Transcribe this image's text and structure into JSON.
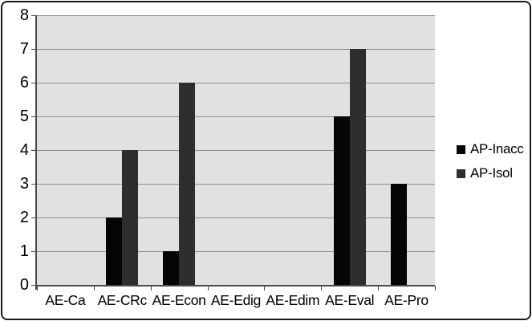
{
  "chart_data": {
    "type": "bar",
    "title": "",
    "categories": [
      "AE-Ca",
      "AE-CRc",
      "AE-Econ",
      "AE-Edig",
      "AE-Edim",
      "AE-Eval",
      "AE-Pro"
    ],
    "series": [
      {
        "name": "AP-Inacc",
        "color": "#050505",
        "values": [
          0,
          2,
          1,
          0,
          0,
          5,
          3
        ]
      },
      {
        "name": "AP-Isol",
        "color": "#2e2e2e",
        "values": [
          0,
          4,
          6,
          0,
          0,
          7,
          0
        ]
      }
    ],
    "xlabel": "",
    "ylabel": "",
    "ylim": [
      0,
      8
    ],
    "yticks": [
      0,
      1,
      2,
      3,
      4,
      5,
      6,
      7,
      8
    ],
    "grid": "horizontal-only",
    "legend_position": "right",
    "colors": {
      "plot_background": "#e1e1e1",
      "gridline": "#8f8f8f",
      "axis": "#4a4a4a",
      "border": "#1b1b1b",
      "text": "#000000"
    }
  }
}
